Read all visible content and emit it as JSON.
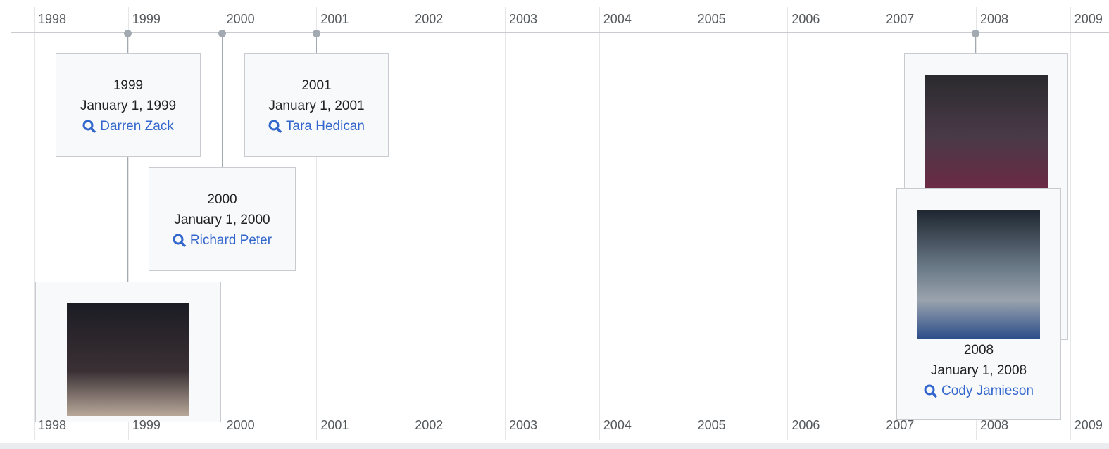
{
  "axis": {
    "years": [
      "1998",
      "1999",
      "2000",
      "2001",
      "2002",
      "2003",
      "2004",
      "2005",
      "2006",
      "2007",
      "2008",
      "2009"
    ]
  },
  "events": [
    {
      "year": "1999",
      "date": "January 1, 1999",
      "name": "Darren Zack"
    },
    {
      "year": "2000",
      "date": "January 1, 2000",
      "name": "Richard Peter"
    },
    {
      "year": "2001",
      "date": "January 1, 2001",
      "name": "Tara Hedican"
    },
    {
      "year": "2008",
      "date": "January 1, 2008",
      "name": "Cody Jamieson"
    }
  ]
}
